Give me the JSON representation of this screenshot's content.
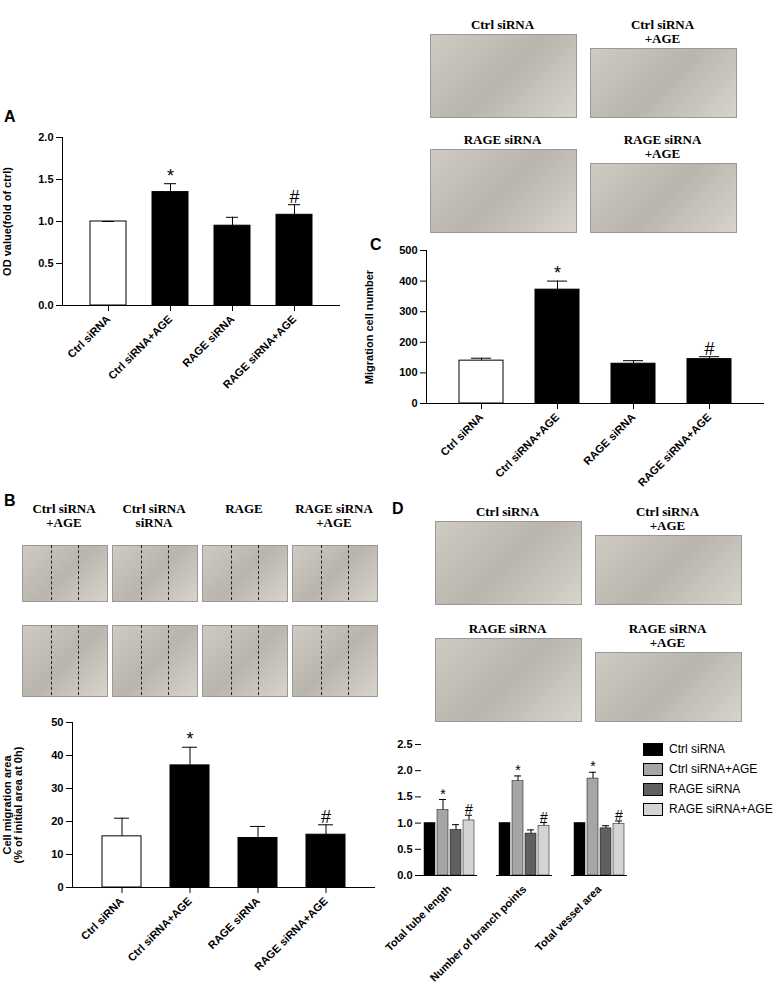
{
  "chart_data": [
    {
      "title": "A",
      "type": "bar",
      "categories": [
        "Ctrl siRNA",
        "Ctrl siRNA+AGE",
        "RAGE siRNA",
        "RAGE siRNA+AGE"
      ],
      "values": [
        1.0,
        1.35,
        0.95,
        1.08
      ],
      "errors": [
        0,
        0.1,
        0.1,
        0.12
      ],
      "annotations": [
        null,
        "*",
        null,
        "#"
      ],
      "colors": [
        "#ffffff",
        "#000000",
        "#000000",
        "#000000"
      ],
      "y_label": "OD value(fold of ctrl)",
      "ylim": [
        0,
        2
      ],
      "yticks": [
        {
          "value": 0,
          "label": "0.0"
        },
        {
          "value": 0.5,
          "label": "0.5"
        },
        {
          "value": 1,
          "label": "1.0"
        },
        {
          "value": 1.5,
          "label": "1.5"
        },
        {
          "value": 2,
          "label": "2.0"
        }
      ]
    },
    {
      "title": "B",
      "type": "bar",
      "image_labels": [
        "Ctrl siRNA\n+AGE",
        "Ctrl siRNA\nsiRNA",
        "RAGE",
        "RAGE siRNA\n+AGE"
      ],
      "categories": [
        "Ctrl siRNA",
        "Ctrl siRNA+AGE",
        "RAGE siRNA",
        "RAGE siRNA+AGE"
      ],
      "values": [
        15.5,
        37,
        15,
        16
      ],
      "errors": [
        5.5,
        5.5,
        3.5,
        3
      ],
      "annotations": [
        null,
        "*",
        null,
        "#"
      ],
      "colors": [
        "#ffffff",
        "#000000",
        "#000000",
        "#000000"
      ],
      "y_label": "Cell migration area\n(% of initial area at 0h)",
      "ylim": [
        0,
        50
      ],
      "yticks": [
        0,
        10,
        20,
        30,
        40,
        50
      ]
    },
    {
      "title": "C",
      "type": "bar",
      "image_labels": [
        "Ctrl siRNA",
        "Ctrl siRNA\n+AGE",
        "RAGE siRNA",
        "RAGE siRNA\n+AGE"
      ],
      "categories": [
        "Ctrl siRNA",
        "Ctrl siRNA+AGE",
        "RAGE siRNA",
        "RAGE siRNA+AGE"
      ],
      "values": [
        140,
        372,
        130,
        145
      ],
      "errors": [
        8,
        28,
        10,
        8
      ],
      "annotations": [
        null,
        "*",
        null,
        "#"
      ],
      "colors": [
        "#ffffff",
        "#000000",
        "#000000",
        "#000000"
      ],
      "y_label": "Migration cell number",
      "ylim": [
        0,
        500
      ],
      "yticks": [
        0,
        100,
        200,
        300,
        400,
        500
      ]
    },
    {
      "title": "D",
      "type": "bar",
      "image_labels": [
        "Ctrl siRNA",
        "Ctrl siRNA\n+AGE",
        "RAGE siRNA",
        "RAGE siRNA\n+AGE"
      ],
      "categories": [
        "Total tube length",
        "Number of branch points",
        "Total vessel area"
      ],
      "series": [
        {
          "name": "Ctrl siRNA",
          "color": "#000000",
          "values": [
            1,
            1,
            1
          ],
          "errors": [
            0,
            0,
            0
          ],
          "annotations": [
            null,
            null,
            null
          ]
        },
        {
          "name": "Ctrl siRNA+AGE",
          "color": "#a6a6a6",
          "values": [
            1.25,
            1.8,
            1.85
          ],
          "errors": [
            0.2,
            0.1,
            0.12
          ],
          "annotations": [
            "*",
            "*",
            "*"
          ]
        },
        {
          "name": "RAGE siRNA",
          "color": "#606060",
          "values": [
            0.87,
            0.8,
            0.9
          ],
          "errors": [
            0.1,
            0.07,
            0.05
          ],
          "annotations": [
            null,
            null,
            null
          ]
        },
        {
          "name": "RAGE siRNA+AGE",
          "color": "#d4d4d4",
          "values": [
            1.05,
            0.95,
            0.98
          ],
          "errors": [
            0.1,
            0.06,
            0.06
          ],
          "annotations": [
            "#",
            "#",
            "#"
          ]
        }
      ],
      "legend": "right",
      "ylim": [
        0,
        2.5
      ],
      "yticks": [
        {
          "value": 0,
          "label": "0.0"
        },
        {
          "value": 0.5,
          "label": "0.5"
        },
        {
          "value": 1,
          "label": "1.0"
        },
        {
          "value": 1.5,
          "label": "1.5"
        },
        {
          "value": 2,
          "label": "2.0"
        },
        {
          "value": 2.5,
          "label": "2.5"
        }
      ]
    }
  ]
}
